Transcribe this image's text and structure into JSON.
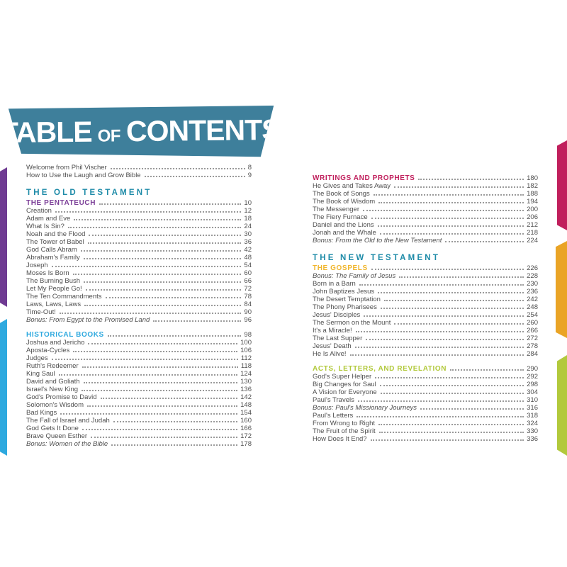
{
  "banner": {
    "word1": "TABLE",
    "word2": "OF",
    "word3": "CONTENTS"
  },
  "colors": {
    "banner_teal": "#3e7f9b",
    "teal": "#1e8ba8",
    "purple": "#7c3f98",
    "purple_tab": "#6f3b92",
    "lightblue": "#2ea9df",
    "crimson": "#c01f5c",
    "gold": "#f0b52c",
    "gold_tab": "#eaa426",
    "lime": "#b2c93c",
    "body_text": "#4f4f4f"
  },
  "left_column": [
    {
      "kind": "intro",
      "entries": [
        {
          "title": "Welcome from Phil Vischer",
          "page": "8"
        },
        {
          "title": "How to Use the Laugh and Grow Bible",
          "page": "9"
        }
      ]
    },
    {
      "kind": "testament",
      "label": "THE OLD TESTAMENT",
      "color_key": "teal"
    },
    {
      "kind": "section",
      "label": "THE PENTATEUCH",
      "page": "10",
      "color_key": "purple",
      "entries": [
        {
          "title": "Creation",
          "page": "12"
        },
        {
          "title": "Adam and Eve",
          "page": "18"
        },
        {
          "title": "What Is Sin?",
          "page": "24"
        },
        {
          "title": "Noah and the Flood",
          "page": "30"
        },
        {
          "title": "The Tower of Babel",
          "page": "36"
        },
        {
          "title": "God Calls Abram",
          "page": "42"
        },
        {
          "title": "Abraham's Family",
          "page": "48"
        },
        {
          "title": "Joseph",
          "page": "54"
        },
        {
          "title": "Moses Is Born",
          "page": "60"
        },
        {
          "title": "The Burning Bush",
          "page": "66"
        },
        {
          "title": "Let My People Go!",
          "page": "72"
        },
        {
          "title": "The Ten Commandments",
          "page": "78"
        },
        {
          "title": "Laws, Laws, Laws",
          "page": "84"
        },
        {
          "title": "Time-Out!",
          "page": "90"
        },
        {
          "title": "Bonus: From Egypt to the Promised Land",
          "page": "96",
          "italic": true
        }
      ]
    },
    {
      "kind": "section",
      "label": "HISTORICAL BOOKS",
      "page": "98",
      "color_key": "lightblue",
      "entries": [
        {
          "title": "Joshua and Jericho",
          "page": "100"
        },
        {
          "title": "Aposta-Cycles",
          "page": "106"
        },
        {
          "title": "Judges",
          "page": "112"
        },
        {
          "title": "Ruth's Redeemer",
          "page": "118"
        },
        {
          "title": "King Saul",
          "page": "124"
        },
        {
          "title": "David and Goliath",
          "page": "130"
        },
        {
          "title": "Israel's New King",
          "page": "136"
        },
        {
          "title": "God's Promise to David",
          "page": "142"
        },
        {
          "title": "Solomon's Wisdom",
          "page": "148"
        },
        {
          "title": "Bad Kings",
          "page": "154"
        },
        {
          "title": "The Fall of Israel and Judah",
          "page": "160"
        },
        {
          "title": "God Gets It Done",
          "page": "166"
        },
        {
          "title": "Brave Queen Esther",
          "page": "172"
        },
        {
          "title": "Bonus: Women of the Bible",
          "page": "178",
          "italic": true
        }
      ]
    }
  ],
  "right_column": [
    {
      "kind": "section",
      "label": "WRITINGS AND PROPHETS",
      "page": "180",
      "color_key": "crimson",
      "entries": [
        {
          "title": "He Gives and Takes Away",
          "page": "182"
        },
        {
          "title": "The Book of Songs",
          "page": "188"
        },
        {
          "title": "The Book of Wisdom",
          "page": "194"
        },
        {
          "title": "The Messenger",
          "page": "200"
        },
        {
          "title": "The Fiery Furnace",
          "page": "206"
        },
        {
          "title": "Daniel and the Lions",
          "page": "212"
        },
        {
          "title": "Jonah and the Whale",
          "page": "218"
        },
        {
          "title": "Bonus: From the Old to the New Testament",
          "page": "224",
          "italic": true
        }
      ]
    },
    {
      "kind": "testament",
      "label": "THE NEW TESTAMENT",
      "color_key": "teal"
    },
    {
      "kind": "section",
      "label": "THE GOSPELS",
      "page": "226",
      "color_key": "gold",
      "entries": [
        {
          "title": "Bonus: The Family of Jesus",
          "page": "228",
          "italic": true
        },
        {
          "title": "Born in a Barn",
          "page": "230"
        },
        {
          "title": "John Baptizes Jesus",
          "page": "236"
        },
        {
          "title": "The Desert Temptation",
          "page": "242"
        },
        {
          "title": "The Phony Pharisees",
          "page": "248"
        },
        {
          "title": "Jesus' Disciples",
          "page": "254"
        },
        {
          "title": "The Sermon on the Mount",
          "page": "260"
        },
        {
          "title": "It's a Miracle!",
          "page": "266"
        },
        {
          "title": "The Last Supper",
          "page": "272"
        },
        {
          "title": "Jesus' Death",
          "page": "278"
        },
        {
          "title": "He Is Alive!",
          "page": "284"
        }
      ]
    },
    {
      "kind": "section",
      "label": "ACTS, LETTERS, AND REVELATION",
      "page": "290",
      "color_key": "lime",
      "entries": [
        {
          "title": "God's Super Helper",
          "page": "292"
        },
        {
          "title": "Big Changes for Saul",
          "page": "298"
        },
        {
          "title": "A Vision for Everyone",
          "page": "304"
        },
        {
          "title": "Paul's Travels",
          "page": "310"
        },
        {
          "title": "Bonus: Paul's Missionary Journeys",
          "page": "316",
          "italic": true
        },
        {
          "title": "Paul's Letters",
          "page": "318"
        },
        {
          "title": "From Wrong to Right",
          "page": "324"
        },
        {
          "title": "The Fruit of the Spirit",
          "page": "330"
        },
        {
          "title": "How Does It End?",
          "page": "336"
        }
      ]
    }
  ],
  "edge_tabs": [
    {
      "section": "The Pentateuch",
      "side": "left",
      "color_key": "purple_tab"
    },
    {
      "section": "Historical Books",
      "side": "left",
      "color_key": "lightblue"
    },
    {
      "section": "Writings and Prophets",
      "side": "right",
      "color_key": "crimson"
    },
    {
      "section": "The Gospels",
      "side": "right",
      "color_key": "gold_tab"
    },
    {
      "section": "Acts, Letters, and Revelation",
      "side": "right",
      "color_key": "lime"
    }
  ]
}
